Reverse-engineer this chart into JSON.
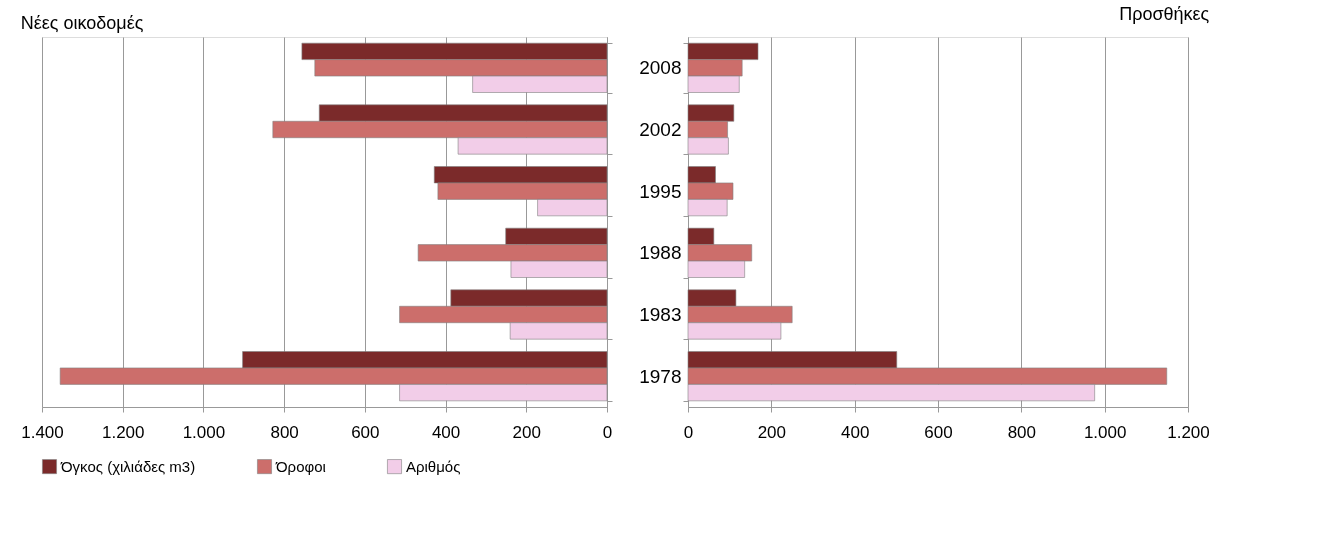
{
  "chart_data": [
    {
      "type": "bar",
      "orientation": "horizontal",
      "title": "Νέες οικοδομές",
      "categories": [
        "2008",
        "2002",
        "1995",
        "1988",
        "1983",
        "1978"
      ],
      "series": [
        {
          "name": "Όγκος (χιλιάδες m3)",
          "color": "#7b2a2a",
          "values": [
            756,
            713,
            428,
            251,
            387,
            903
          ]
        },
        {
          "name": "Όροφοι",
          "color": "#cc6e6b",
          "values": [
            724,
            828,
            419,
            468,
            514,
            1355
          ]
        },
        {
          "name": "Αριθμός",
          "color": "#f2cde8",
          "values": [
            333,
            369,
            172,
            238,
            240,
            514
          ]
        }
      ],
      "xlim": [
        1400,
        0
      ],
      "xticks": [
        {
          "value": 1400,
          "label": "1.400"
        },
        {
          "value": 1200,
          "label": "1.200"
        },
        {
          "value": 1000,
          "label": "1.000"
        },
        800,
        600,
        400,
        200,
        0
      ],
      "grid": "x",
      "legend": "bottom",
      "tick_labels": "x"
    },
    {
      "type": "bar",
      "orientation": "horizontal",
      "title": "Προσθήκες",
      "categories": [
        "2008",
        "2002",
        "1995",
        "1988",
        "1983",
        "1978"
      ],
      "series": [
        {
          "name": "Όγκος (χιλιάδες m3)",
          "color": "#7b2a2a",
          "values": [
            168,
            110,
            66,
            62,
            115,
            501
          ]
        },
        {
          "name": "Όροφοι",
          "color": "#cc6e6b",
          "values": [
            130,
            95,
            108,
            153,
            250,
            1149
          ]
        },
        {
          "name": "Αριθμός",
          "color": "#f2cde8",
          "values": [
            123,
            97,
            94,
            136,
            223,
            976
          ]
        }
      ],
      "xlim": [
        0,
        1200
      ],
      "xticks": [
        0,
        200,
        400,
        600,
        800,
        {
          "value": 1000,
          "label": "1.000"
        },
        {
          "value": 1200,
          "label": "1.200"
        }
      ],
      "grid": "x",
      "legend": "bottom"
    }
  ]
}
